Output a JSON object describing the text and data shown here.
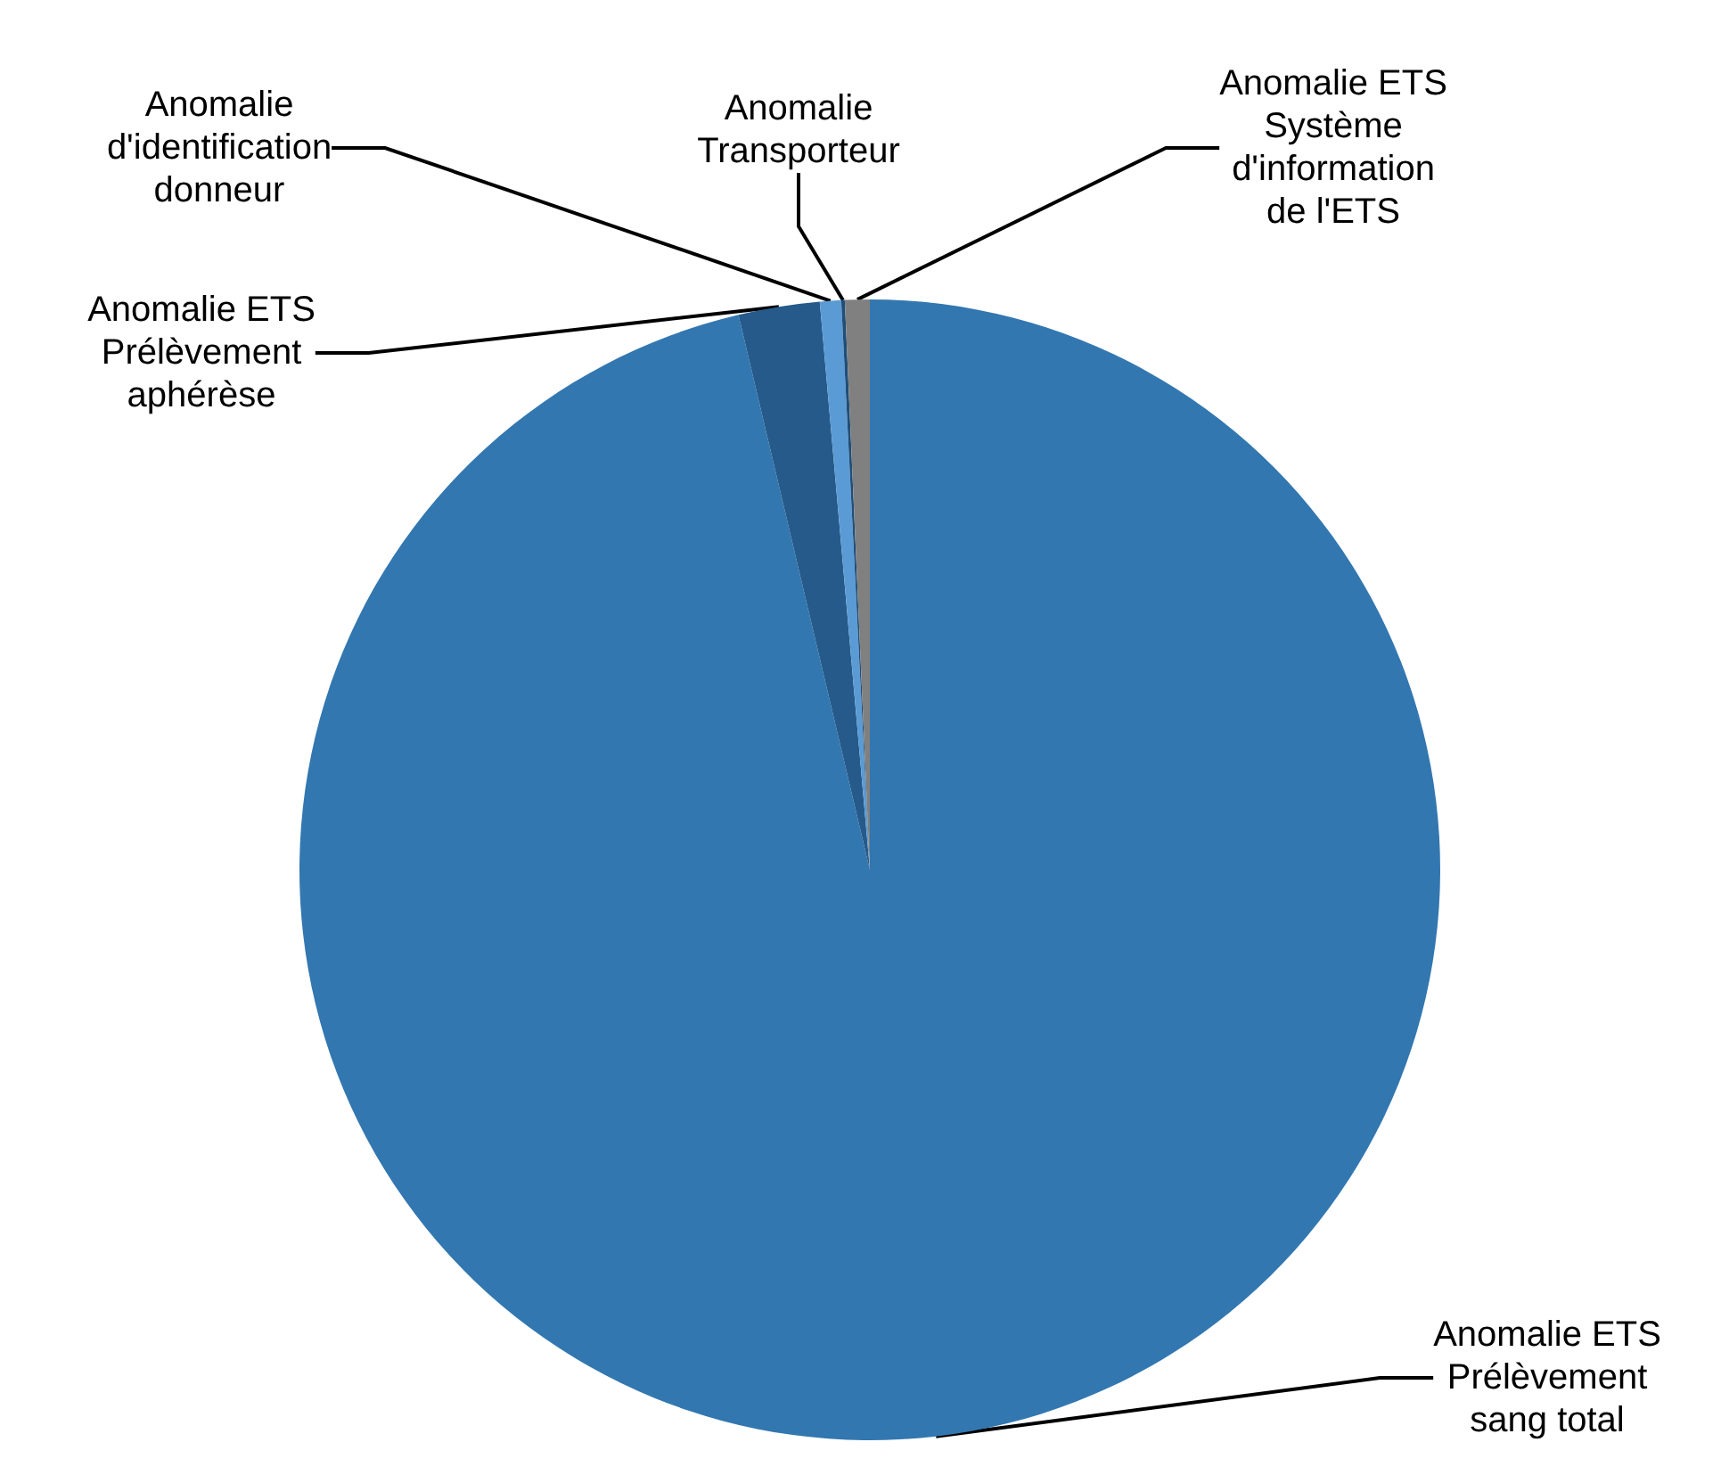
{
  "chart_data": {
    "type": "pie",
    "categories": [
      "Anomalie ETS\nPrélèvement\nsang total",
      "Anomalie ETS\nPrélèvement\naphérèse",
      "Anomalie\nd'identification\ndonneur",
      "Anomalie\nTransporteur",
      "Anomalie ETS\nSystème\nd'information\nde l'ETS"
    ],
    "values": [
      96.3,
      2.3,
      0.6,
      0.1,
      0.7
    ],
    "colors": [
      "#3277b0",
      "#255a8a",
      "#5b9bd5",
      "#1f4e79",
      "#808080"
    ],
    "legend": false
  }
}
